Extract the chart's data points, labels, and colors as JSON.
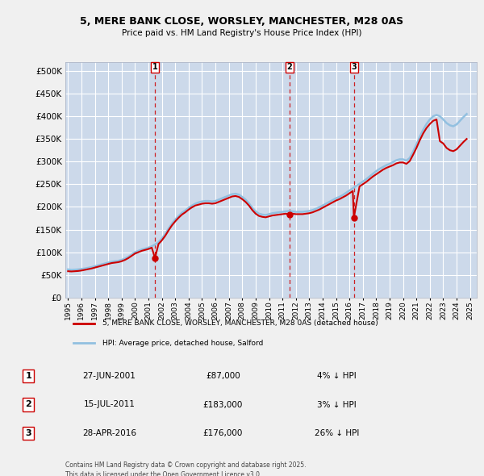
{
  "title": "5, MERE BANK CLOSE, WORSLEY, MANCHESTER, M28 0AS",
  "subtitle": "Price paid vs. HM Land Registry's House Price Index (HPI)",
  "ytick_values": [
    0,
    50000,
    100000,
    150000,
    200000,
    250000,
    300000,
    350000,
    400000,
    450000,
    500000
  ],
  "ylim": [
    0,
    520000
  ],
  "xlim_start": 1994.8,
  "xlim_end": 2025.5,
  "outer_bg": "#f0f0f0",
  "plot_bg_color": "#ccd9ea",
  "grid_color": "#ffffff",
  "hpi_line_color": "#92c0e0",
  "price_line_color": "#cc0000",
  "vline_color": "#cc0000",
  "sale_markers": [
    {
      "date": 2001.49,
      "price": 87000,
      "label": "1"
    },
    {
      "date": 2011.54,
      "price": 183000,
      "label": "2"
    },
    {
      "date": 2016.33,
      "price": 176000,
      "label": "3"
    }
  ],
  "legend_red_label": "5, MERE BANK CLOSE, WORSLEY, MANCHESTER, M28 0AS (detached house)",
  "legend_blue_label": "HPI: Average price, detached house, Salford",
  "table_rows": [
    {
      "num": "1",
      "date": "27-JUN-2001",
      "price": "£87,000",
      "pct": "4% ↓ HPI"
    },
    {
      "num": "2",
      "date": "15-JUL-2011",
      "price": "£183,000",
      "pct": "3% ↓ HPI"
    },
    {
      "num": "3",
      "date": "28-APR-2016",
      "price": "£176,000",
      "pct": "26% ↓ HPI"
    }
  ],
  "footer": "Contains HM Land Registry data © Crown copyright and database right 2025.\nThis data is licensed under the Open Government Licence v3.0.",
  "hpi_data_years": [
    1995.0,
    1995.25,
    1995.5,
    1995.75,
    1996.0,
    1996.25,
    1996.5,
    1996.75,
    1997.0,
    1997.25,
    1997.5,
    1997.75,
    1998.0,
    1998.25,
    1998.5,
    1998.75,
    1999.0,
    1999.25,
    1999.5,
    1999.75,
    2000.0,
    2000.25,
    2000.5,
    2000.75,
    2001.0,
    2001.25,
    2001.5,
    2001.75,
    2002.0,
    2002.25,
    2002.5,
    2002.75,
    2003.0,
    2003.25,
    2003.5,
    2003.75,
    2004.0,
    2004.25,
    2004.5,
    2004.75,
    2005.0,
    2005.25,
    2005.5,
    2005.75,
    2006.0,
    2006.25,
    2006.5,
    2006.75,
    2007.0,
    2007.25,
    2007.5,
    2007.75,
    2008.0,
    2008.25,
    2008.5,
    2008.75,
    2009.0,
    2009.25,
    2009.5,
    2009.75,
    2010.0,
    2010.25,
    2010.5,
    2010.75,
    2011.0,
    2011.25,
    2011.5,
    2011.75,
    2012.0,
    2012.25,
    2012.5,
    2012.75,
    2013.0,
    2013.25,
    2013.5,
    2013.75,
    2014.0,
    2014.25,
    2014.5,
    2014.75,
    2015.0,
    2015.25,
    2015.5,
    2015.75,
    2016.0,
    2016.25,
    2016.5,
    2016.75,
    2017.0,
    2017.25,
    2017.5,
    2017.75,
    2018.0,
    2018.25,
    2018.5,
    2018.75,
    2019.0,
    2019.25,
    2019.5,
    2019.75,
    2020.0,
    2020.25,
    2020.5,
    2020.75,
    2021.0,
    2021.25,
    2021.5,
    2021.75,
    2022.0,
    2022.25,
    2022.5,
    2022.75,
    2023.0,
    2023.25,
    2023.5,
    2023.75,
    2024.0,
    2024.25,
    2024.5,
    2024.75
  ],
  "hpi_data_vals": [
    62000,
    61000,
    61500,
    62000,
    63000,
    64000,
    65500,
    67000,
    69000,
    71000,
    73000,
    75000,
    77000,
    79000,
    80000,
    81000,
    83000,
    86000,
    90000,
    95000,
    100000,
    103000,
    106000,
    108000,
    110000,
    113000,
    117000,
    122000,
    130000,
    140000,
    152000,
    163000,
    172000,
    180000,
    187000,
    192000,
    198000,
    203000,
    207000,
    210000,
    212000,
    213000,
    213000,
    212000,
    213000,
    216000,
    219000,
    222000,
    225000,
    228000,
    229000,
    227000,
    222000,
    216000,
    208000,
    198000,
    190000,
    185000,
    183000,
    182000,
    184000,
    186000,
    187000,
    188000,
    189000,
    190000,
    191000,
    190000,
    189000,
    189000,
    189000,
    190000,
    191000,
    193000,
    196000,
    199000,
    203000,
    207000,
    211000,
    215000,
    219000,
    222000,
    226000,
    231000,
    236000,
    241000,
    246000,
    251000,
    256000,
    261000,
    267000,
    273000,
    279000,
    284000,
    288000,
    292000,
    295000,
    299000,
    303000,
    305000,
    305000,
    302000,
    308000,
    322000,
    338000,
    355000,
    370000,
    383000,
    393000,
    400000,
    403000,
    400000,
    393000,
    385000,
    380000,
    378000,
    382000,
    390000,
    398000,
    405000
  ],
  "price_data_years": [
    1995.0,
    1995.25,
    1995.5,
    1995.75,
    1996.0,
    1996.25,
    1996.5,
    1996.75,
    1997.0,
    1997.25,
    1997.5,
    1997.75,
    1998.0,
    1998.25,
    1998.5,
    1998.75,
    1999.0,
    1999.25,
    1999.5,
    1999.75,
    2000.0,
    2000.25,
    2000.5,
    2000.75,
    2001.0,
    2001.25,
    2001.49,
    2001.75,
    2002.0,
    2002.25,
    2002.5,
    2002.75,
    2003.0,
    2003.25,
    2003.5,
    2003.75,
    2004.0,
    2004.25,
    2004.5,
    2004.75,
    2005.0,
    2005.25,
    2005.5,
    2005.75,
    2006.0,
    2006.25,
    2006.5,
    2006.75,
    2007.0,
    2007.25,
    2007.5,
    2007.75,
    2008.0,
    2008.25,
    2008.5,
    2008.75,
    2009.0,
    2009.25,
    2009.5,
    2009.75,
    2010.0,
    2010.25,
    2010.5,
    2010.75,
    2011.0,
    2011.25,
    2011.54,
    2011.75,
    2012.0,
    2012.25,
    2012.5,
    2012.75,
    2013.0,
    2013.25,
    2013.5,
    2013.75,
    2014.0,
    2014.25,
    2014.5,
    2014.75,
    2015.0,
    2015.25,
    2015.5,
    2015.75,
    2016.0,
    2016.25,
    2016.33,
    2016.75,
    2017.0,
    2017.25,
    2017.5,
    2017.75,
    2018.0,
    2018.25,
    2018.5,
    2018.75,
    2019.0,
    2019.25,
    2019.5,
    2019.75,
    2020.0,
    2020.25,
    2020.5,
    2020.75,
    2021.0,
    2021.25,
    2021.5,
    2021.75,
    2022.0,
    2022.25,
    2022.5,
    2022.75,
    2023.0,
    2023.25,
    2023.5,
    2023.75,
    2024.0,
    2024.25,
    2024.5,
    2024.75
  ],
  "price_data_vals": [
    58000,
    57500,
    58000,
    58500,
    59500,
    61000,
    62500,
    64000,
    66000,
    68000,
    70000,
    72000,
    74000,
    76000,
    77000,
    78000,
    80000,
    83000,
    87000,
    92000,
    97000,
    100000,
    103000,
    105000,
    107000,
    110000,
    87000,
    118000,
    126000,
    136000,
    148000,
    159000,
    168000,
    176000,
    183000,
    188000,
    194000,
    199000,
    203000,
    205000,
    207000,
    208000,
    208000,
    207000,
    208000,
    211000,
    214000,
    217000,
    220000,
    223000,
    224000,
    222000,
    217000,
    211000,
    203000,
    193000,
    185000,
    180000,
    178000,
    177000,
    179000,
    181000,
    182000,
    183000,
    184000,
    185000,
    183000,
    185000,
    184000,
    184000,
    184000,
    185000,
    186000,
    188000,
    191000,
    194000,
    198000,
    202000,
    206000,
    210000,
    214000,
    217000,
    221000,
    225000,
    230000,
    235000,
    176000,
    245000,
    250000,
    255000,
    261000,
    267000,
    272000,
    277000,
    282000,
    286000,
    289000,
    292000,
    296000,
    298000,
    298000,
    295000,
    301000,
    315000,
    330000,
    347000,
    362000,
    374000,
    383000,
    390000,
    393000,
    345000,
    340000,
    330000,
    325000,
    323000,
    327000,
    335000,
    343000,
    350000
  ]
}
